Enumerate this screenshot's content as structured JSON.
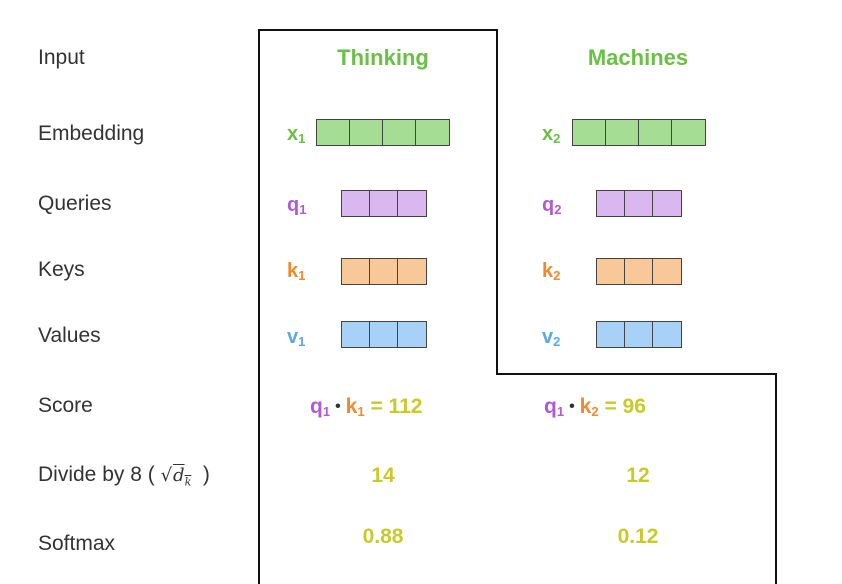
{
  "rows": {
    "input": "Input",
    "embedding": "Embedding",
    "queries": "Queries",
    "keys": "Keys",
    "values": "Values",
    "score": "Score",
    "divide": "Divide by 8 (",
    "divide_close": ")",
    "softmax": "Softmax"
  },
  "sqrt_symbol": "√",
  "sqrt_var": "d",
  "sqrt_sub": "k",
  "words": [
    {
      "word": "Thinking",
      "embedding_label": "x",
      "embedding_sub": "1",
      "query_label": "q",
      "query_sub": "1",
      "key_label": "k",
      "key_sub": "1",
      "value_label": "v",
      "value_sub": "1",
      "score": {
        "q": "q",
        "q_sub": "1",
        "k": "k",
        "k_sub": "1",
        "eq": "=",
        "value": "112"
      },
      "divided": "14",
      "softmax": "0.88"
    },
    {
      "word": "Machines",
      "embedding_label": "x",
      "embedding_sub": "2",
      "query_label": "q",
      "query_sub": "2",
      "key_label": "k",
      "key_sub": "2",
      "value_label": "v",
      "value_sub": "2",
      "score": {
        "q": "q",
        "q_sub": "1",
        "k": "k",
        "k_sub": "2",
        "eq": "=",
        "value": "96"
      },
      "divided": "12",
      "softmax": "0.12"
    }
  ],
  "dot_symbol": "•",
  "colors": {
    "word": "#6abf45",
    "embedding_fill": "#a6dd94",
    "query_fill": "#d9b8f0",
    "query_text": "#b25ad6",
    "key_fill": "#f8c898",
    "key_text": "#f08a2c",
    "value_fill": "#a7d1f7",
    "value_text": "#5aa8ec",
    "number": "#c9c92a"
  },
  "vector_cells": {
    "embedding": 4,
    "query": 3,
    "key": 3,
    "value": 3
  }
}
